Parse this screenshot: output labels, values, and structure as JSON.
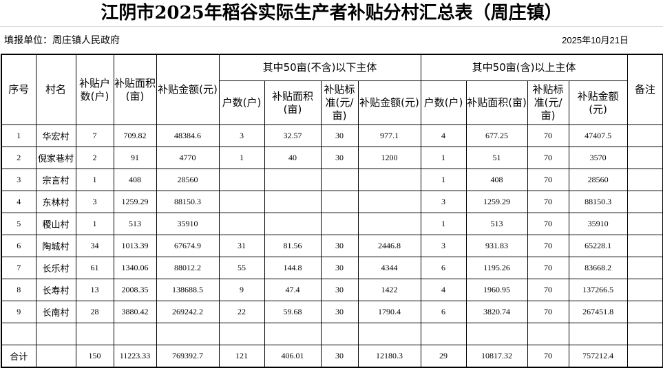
{
  "title": "江阴市2025年稻谷实际生产者补贴分村汇总表（周庄镇）",
  "reporting_unit": "填报单位：周庄镇人民政府",
  "date": "2025年10月21日",
  "headers": {
    "seq": "序号",
    "village": "村名",
    "households": "补贴户数(户)",
    "area": "补贴面积(亩)",
    "amount": "补贴金额(元)",
    "group_below": "其中50亩(不含)以下主体",
    "group_above": "其中50亩(含)以上主体",
    "sub_households": "户数(户)",
    "sub_area": "补贴面积(亩)",
    "sub_rate": "补贴标准(元/亩)",
    "sub_amount": "补贴金额(元)",
    "remark": "备注"
  },
  "rows": [
    [
      "1",
      "华宏村",
      "7",
      "709.82",
      "48384.6",
      "3",
      "32.57",
      "30",
      "977.1",
      "4",
      "677.25",
      "70",
      "47407.5",
      ""
    ],
    [
      "2",
      "倪家巷村",
      "2",
      "91",
      "4770",
      "1",
      "40",
      "30",
      "1200",
      "1",
      "51",
      "70",
      "3570",
      ""
    ],
    [
      "3",
      "宗言村",
      "1",
      "408",
      "28560",
      "",
      "",
      "",
      "",
      "1",
      "408",
      "70",
      "28560",
      ""
    ],
    [
      "4",
      "东林村",
      "3",
      "1259.29",
      "88150.3",
      "",
      "",
      "",
      "",
      "3",
      "1259.29",
      "70",
      "88150.3",
      ""
    ],
    [
      "5",
      "稷山村",
      "1",
      "513",
      "35910",
      "",
      "",
      "",
      "",
      "1",
      "513",
      "70",
      "35910",
      ""
    ],
    [
      "6",
      "陶城村",
      "34",
      "1013.39",
      "67674.9",
      "31",
      "81.56",
      "30",
      "2446.8",
      "3",
      "931.83",
      "70",
      "65228.1",
      ""
    ],
    [
      "7",
      "长乐村",
      "61",
      "1340.06",
      "88012.2",
      "55",
      "144.8",
      "30",
      "4344",
      "6",
      "1195.26",
      "70",
      "83668.2",
      ""
    ],
    [
      "8",
      "长寿村",
      "13",
      "2008.35",
      "138688.5",
      "9",
      "47.4",
      "30",
      "1422",
      "4",
      "1960.95",
      "70",
      "137266.5",
      ""
    ],
    [
      "9",
      "长南村",
      "28",
      "3880.42",
      "269242.2",
      "22",
      "59.68",
      "30",
      "1790.4",
      "6",
      "3820.74",
      "70",
      "267451.8",
      ""
    ],
    [
      "",
      "",
      "",
      "",
      "",
      "",
      "",
      "",
      "",
      "",
      "",
      "",
      "",
      ""
    ],
    [
      "合计",
      "",
      "150",
      "11223.33",
      "769392.7",
      "121",
      "406.01",
      "30",
      "12180.3",
      "29",
      "10817.32",
      "70",
      "757212.4",
      ""
    ]
  ]
}
